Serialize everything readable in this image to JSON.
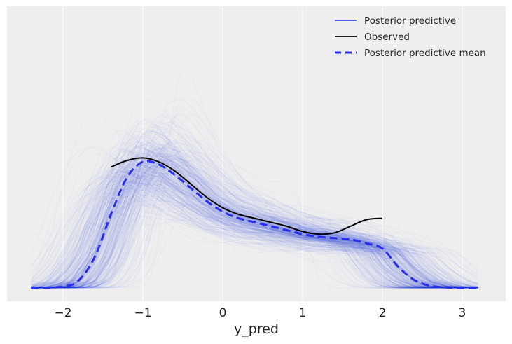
{
  "chart_data": {
    "type": "line",
    "title": "",
    "xlabel": "y_pred",
    "ylabel": "",
    "xlim": [
      -2.6,
      3.55
    ],
    "x_ticks": [
      -2,
      -1,
      0,
      1,
      2,
      3
    ],
    "x_tick_labels": [
      "−2",
      "−1",
      "0",
      "1",
      "2",
      "3"
    ],
    "y_ticks": [],
    "grid": "vertical",
    "legend_position": "upper right",
    "legend": [
      {
        "label": "Posterior predictive",
        "style": "solid",
        "color": "#2a2eec"
      },
      {
        "label": "Observed",
        "style": "solid",
        "color": "#000000"
      },
      {
        "label": "Posterior predictive mean",
        "style": "dashed",
        "color": "#2a2eec"
      }
    ],
    "series": [
      {
        "name": "Observed",
        "x": [
          -1.4,
          -1.2,
          -1.0,
          -0.8,
          -0.6,
          -0.4,
          -0.2,
          0.0,
          0.2,
          0.4,
          0.6,
          0.8,
          1.0,
          1.2,
          1.4,
          1.6,
          1.8,
          2.0
        ],
        "y": [
          0.46,
          0.485,
          0.495,
          0.48,
          0.445,
          0.395,
          0.345,
          0.305,
          0.28,
          0.265,
          0.25,
          0.235,
          0.215,
          0.205,
          0.21,
          0.235,
          0.26,
          0.265
        ]
      },
      {
        "name": "Posterior predictive mean",
        "x": [
          -2.4,
          -2.0,
          -1.8,
          -1.6,
          -1.4,
          -1.2,
          -1.0,
          -0.8,
          -0.6,
          -0.4,
          -0.2,
          0.0,
          0.2,
          0.4,
          0.6,
          0.8,
          1.0,
          1.2,
          1.4,
          1.6,
          1.8,
          2.0,
          2.2,
          2.4,
          2.6,
          2.8,
          3.0,
          3.2
        ],
        "y": [
          0.0,
          0.005,
          0.03,
          0.12,
          0.28,
          0.42,
          0.48,
          0.47,
          0.43,
          0.38,
          0.33,
          0.29,
          0.265,
          0.25,
          0.235,
          0.22,
          0.205,
          0.195,
          0.19,
          0.185,
          0.17,
          0.15,
          0.08,
          0.03,
          0.008,
          0.002,
          0.0,
          0.0
        ]
      }
    ],
    "posterior_predictive_samples": "many faint blue KDE curves spanning approx x -2.3 to 3.2, peak density near x=-1, band narrowing between x=0 and x=2"
  },
  "colors": {
    "background": "#eeeeee",
    "grid": "#ffffff",
    "posterior": "#2a2eec",
    "observed": "#000000"
  }
}
